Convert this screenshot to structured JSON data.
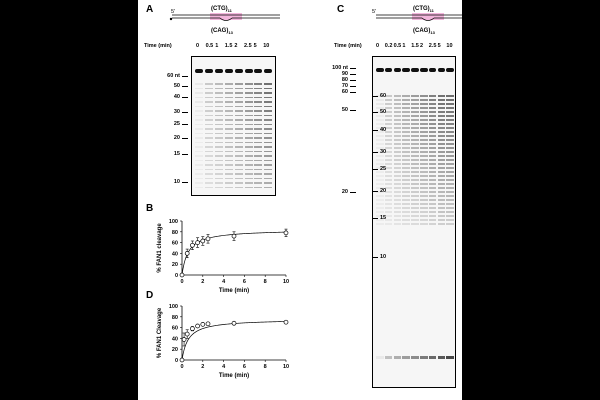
{
  "panels": {
    "A": {
      "label": "A",
      "substrate": {
        "top_strand": "(CTG)",
        "top_sub": "11",
        "bottom_strand": "(CAG)",
        "bottom_sub": "13",
        "five_prime": "5'"
      },
      "time_header": "Time (min)",
      "lanes": [
        "0",
        "0.5",
        "1",
        "1.5",
        "2",
        "2.5",
        "5",
        "10"
      ],
      "markers": [
        "60 nt",
        "50",
        "40",
        "30",
        "25",
        "20",
        "15",
        "10"
      ]
    },
    "B": {
      "label": "B"
    },
    "C": {
      "label": "C",
      "substrate": {
        "top_strand": "(CTG)",
        "top_sub": "11",
        "bottom_strand": "(CAG)",
        "bottom_sub": "13",
        "five_prime": "5'"
      },
      "time_header": "Time (min)",
      "lanes": [
        "0",
        "0.2",
        "0.5",
        "1",
        "1.5",
        "2",
        "2.5",
        "5",
        "10"
      ],
      "markers_left": [
        "100 nt",
        "90",
        "80",
        "70",
        "60",
        "50",
        "20"
      ],
      "markers_right": [
        "60",
        "50",
        "40",
        "30",
        "25",
        "20",
        "15",
        "10"
      ]
    },
    "D": {
      "label": "D"
    }
  },
  "chart_data": [
    {
      "panel": "B",
      "type": "scatter",
      "xlabel": "Time (min)",
      "ylabel": "% FAN1 cleavage",
      "xlim": [
        0,
        10
      ],
      "ylim": [
        0,
        100
      ],
      "xticks": [
        "0",
        "2",
        "4",
        "6",
        "8",
        "10"
      ],
      "yticks": [
        "0",
        "20",
        "40",
        "60",
        "80",
        "100"
      ],
      "x": [
        0,
        0.5,
        1,
        1.5,
        2,
        2.5,
        5,
        10
      ],
      "y": [
        0,
        40,
        55,
        60,
        63,
        67,
        72,
        78
      ],
      "err": [
        0,
        8,
        8,
        9,
        8,
        8,
        8,
        7
      ],
      "fit": "hyperbolic"
    },
    {
      "panel": "D",
      "type": "scatter",
      "xlabel": "Time (min)",
      "ylabel": "% FAN1 Cleavage",
      "xlim": [
        0,
        10
      ],
      "ylim": [
        0,
        100
      ],
      "xticks": [
        "0",
        "2",
        "4",
        "6",
        "8",
        "10"
      ],
      "yticks": [
        "0",
        "20",
        "40",
        "60",
        "80",
        "100"
      ],
      "x": [
        0,
        0.2,
        0.5,
        1,
        1.5,
        2,
        2.5,
        5,
        10
      ],
      "y": [
        0,
        38,
        48,
        58,
        63,
        66,
        67,
        68,
        70
      ],
      "err": [
        0,
        12,
        8,
        4,
        3,
        2,
        2,
        2,
        2
      ],
      "fit": "hyperbolic"
    }
  ]
}
